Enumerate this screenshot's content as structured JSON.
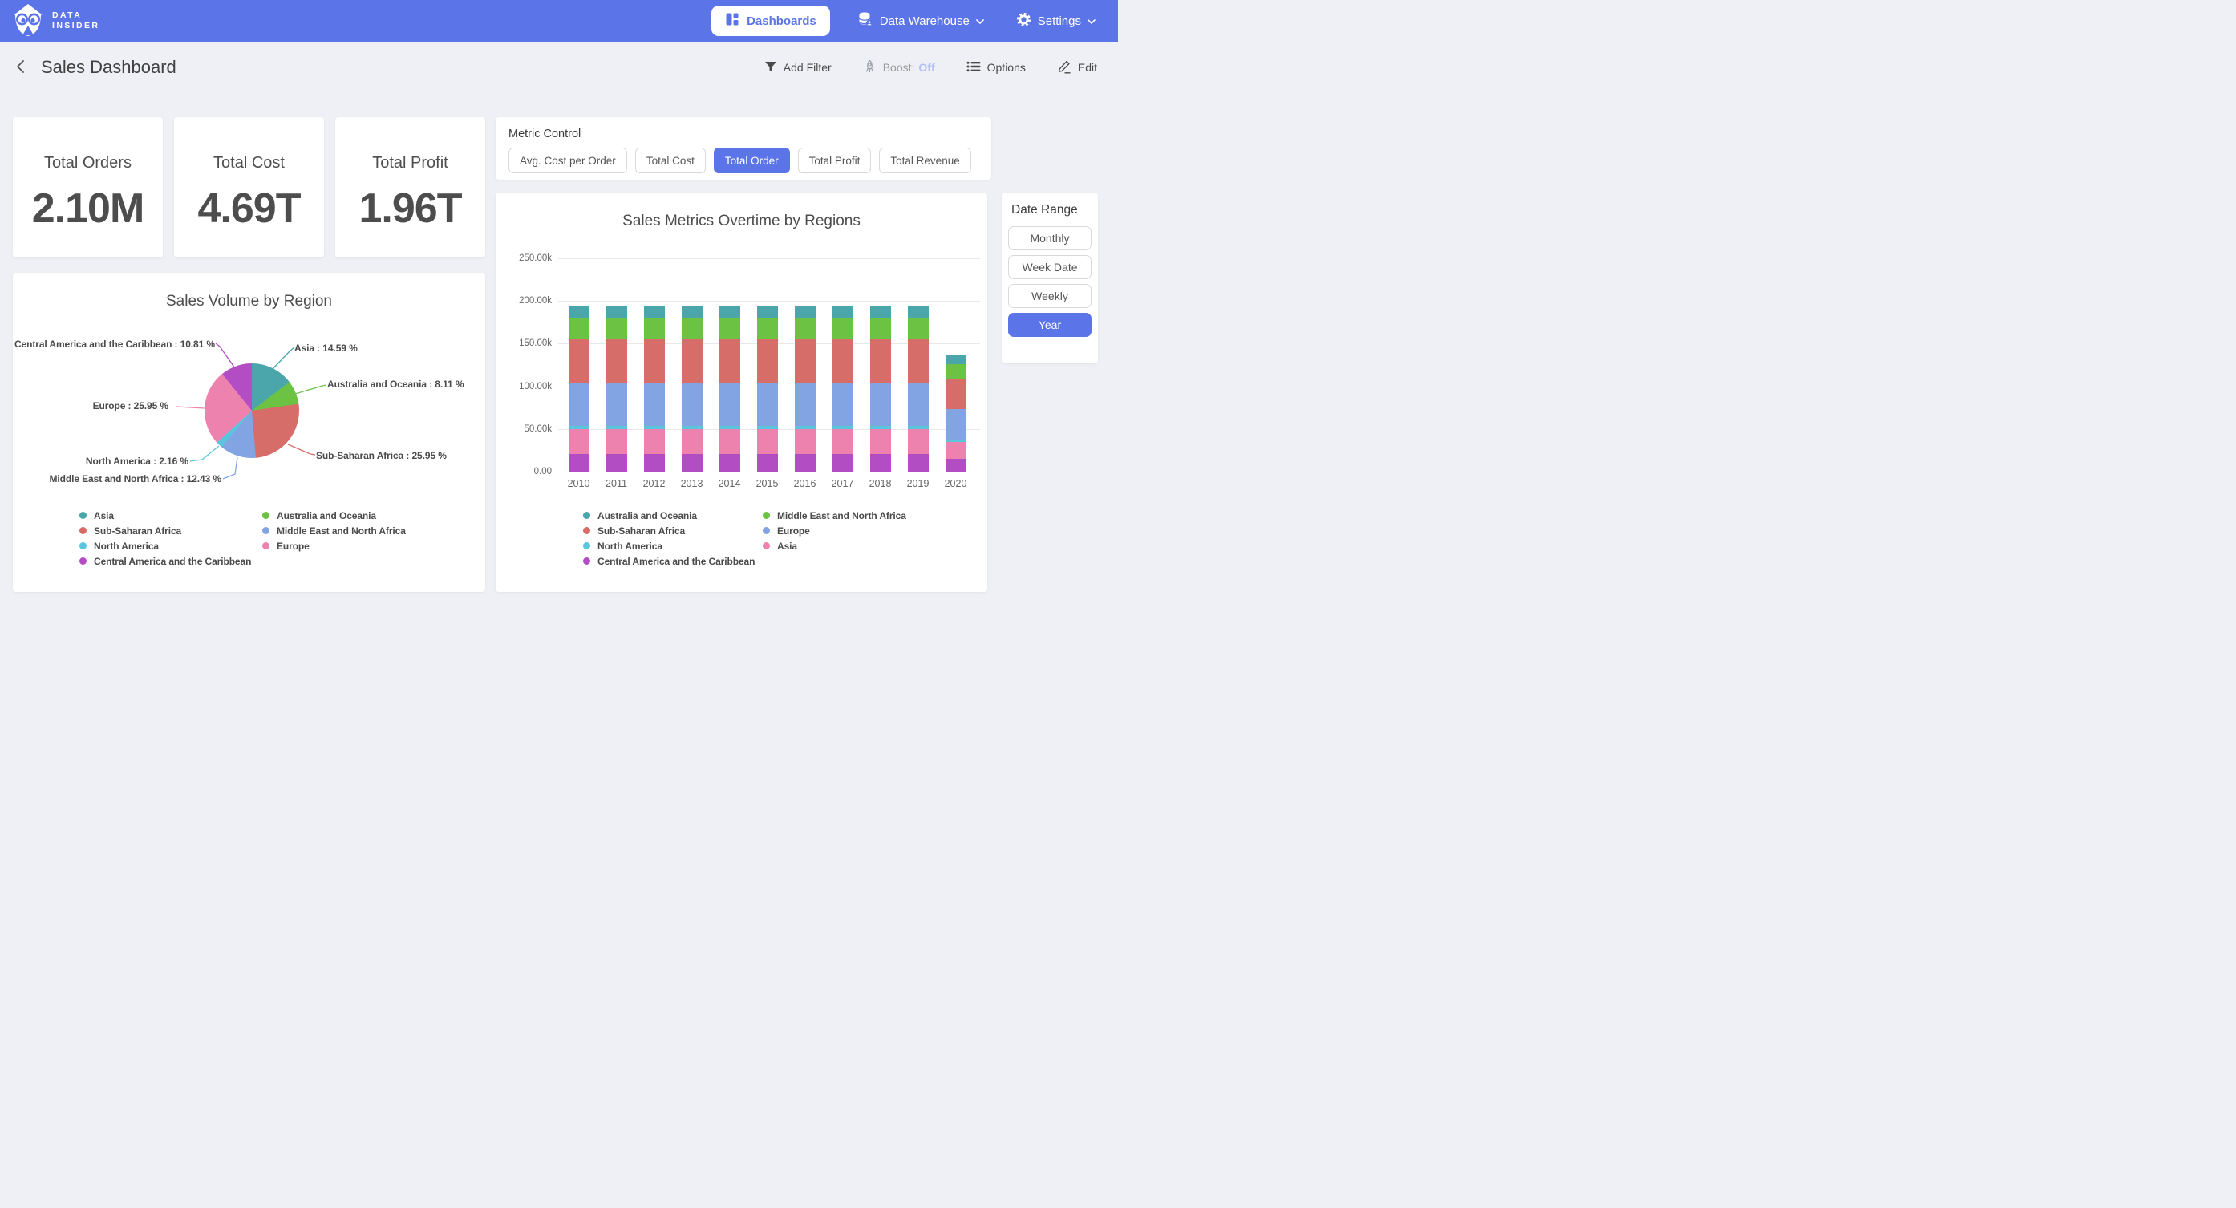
{
  "navbar": {
    "brand_line1": "DATA",
    "brand_line2": "INSIDER",
    "dashboards_label": "Dashboards",
    "data_warehouse_label": "Data Warehouse",
    "settings_label": "Settings"
  },
  "header": {
    "title": "Sales Dashboard",
    "add_filter": "Add Filter",
    "boost_label": "Boost:",
    "boost_value": "Off",
    "options": "Options",
    "edit": "Edit"
  },
  "kpis": [
    {
      "label": "Total Orders",
      "value": "2.10M"
    },
    {
      "label": "Total Cost",
      "value": "4.69T"
    },
    {
      "label": "Total Profit",
      "value": "1.96T"
    }
  ],
  "metric_control": {
    "title": "Metric Control",
    "buttons": [
      {
        "label": "Avg. Cost per Order",
        "selected": false
      },
      {
        "label": "Total Cost",
        "selected": false
      },
      {
        "label": "Total Order",
        "selected": true
      },
      {
        "label": "Total Profit",
        "selected": false
      },
      {
        "label": "Total Revenue",
        "selected": false
      }
    ]
  },
  "date_range": {
    "title": "Date Range",
    "buttons": [
      {
        "label": "Monthly",
        "selected": false
      },
      {
        "label": "Week Date",
        "selected": false
      },
      {
        "label": "Weekly",
        "selected": false
      },
      {
        "label": "Year",
        "selected": true
      }
    ]
  },
  "colors": {
    "accent": "#5B74E8",
    "boost_off": "#B6C0F2",
    "teal": "#4AA6AB",
    "green": "#6CC243",
    "red": "#D66D68",
    "blue": "#82A4E3",
    "cyan": "#5AC6DE",
    "pink": "#EE82AE",
    "purple": "#B24DC3"
  },
  "chart_data": [
    {
      "type": "pie",
      "title": "Sales Volume by Region",
      "slices": [
        {
          "label": "Asia",
          "pct": 14.59,
          "color": "#4AA6AB"
        },
        {
          "label": "Australia and Oceania",
          "pct": 8.11,
          "color": "#6CC243"
        },
        {
          "label": "Sub-Saharan Africa",
          "pct": 25.95,
          "color": "#D66D68"
        },
        {
          "label": "Middle East and North Africa",
          "pct": 12.43,
          "color": "#82A4E3"
        },
        {
          "label": "North America",
          "pct": 2.16,
          "color": "#5AC6DE"
        },
        {
          "label": "Europe",
          "pct": 25.95,
          "color": "#EE82AE"
        },
        {
          "label": "Central America and the Caribbean",
          "pct": 10.81,
          "color": "#B24DC3"
        }
      ],
      "legend": [
        [
          "Asia",
          "Sub-Saharan Africa",
          "North America",
          "Central America and the Caribbean"
        ],
        [
          "Australia and Oceania",
          "Middle East and North Africa",
          "Europe"
        ]
      ]
    },
    {
      "type": "bar",
      "stacked": true,
      "title": "Sales Metrics Overtime by Regions",
      "x": [
        "2010",
        "2011",
        "2012",
        "2013",
        "2014",
        "2015",
        "2016",
        "2017",
        "2018",
        "2019",
        "2020"
      ],
      "ylim": [
        0,
        250000
      ],
      "yticks": [
        {
          "label": "250.00k",
          "value": 250000
        },
        {
          "label": "200.00k",
          "value": 200000
        },
        {
          "label": "150.00k",
          "value": 150000
        },
        {
          "label": "100.00k",
          "value": 100000
        },
        {
          "label": "50.00k",
          "value": 50000
        },
        {
          "label": "0.00",
          "value": 0
        }
      ],
      "series": [
        {
          "name": "Central America and the Caribbean",
          "color": "#B24DC3",
          "values": [
            21100,
            21100,
            21100,
            21100,
            21100,
            21100,
            21100,
            21100,
            21100,
            21100,
            14800
          ]
        },
        {
          "name": "Asia",
          "color": "#EE82AE",
          "values": [
            28400,
            28400,
            28400,
            28400,
            28400,
            28400,
            28400,
            28400,
            28400,
            28400,
            20000
          ]
        },
        {
          "name": "North America",
          "color": "#5AC6DE",
          "values": [
            4200,
            4200,
            4200,
            4200,
            4200,
            4200,
            4200,
            4200,
            4200,
            4200,
            3000
          ]
        },
        {
          "name": "Europe",
          "color": "#82A4E3",
          "values": [
            50600,
            50600,
            50600,
            50600,
            50600,
            50600,
            50600,
            50600,
            50600,
            50600,
            35600
          ]
        },
        {
          "name": "Sub-Saharan Africa",
          "color": "#D66D68",
          "values": [
            50600,
            50600,
            50600,
            50600,
            50600,
            50600,
            50600,
            50600,
            50600,
            50600,
            35600
          ]
        },
        {
          "name": "Middle East and North Africa",
          "color": "#6CC243",
          "values": [
            24200,
            24200,
            24200,
            24200,
            24200,
            24200,
            24200,
            24200,
            24200,
            24200,
            17000
          ]
        },
        {
          "name": "Australia and Oceania",
          "color": "#4AA6AB",
          "values": [
            15800,
            15800,
            15800,
            15800,
            15800,
            15800,
            15800,
            15800,
            15800,
            15800,
            11100
          ]
        }
      ],
      "legend": [
        [
          "Australia and Oceania",
          "Sub-Saharan Africa",
          "North America",
          "Central America and the Caribbean"
        ],
        [
          "Middle East and North Africa",
          "Europe",
          "Asia"
        ]
      ]
    }
  ]
}
